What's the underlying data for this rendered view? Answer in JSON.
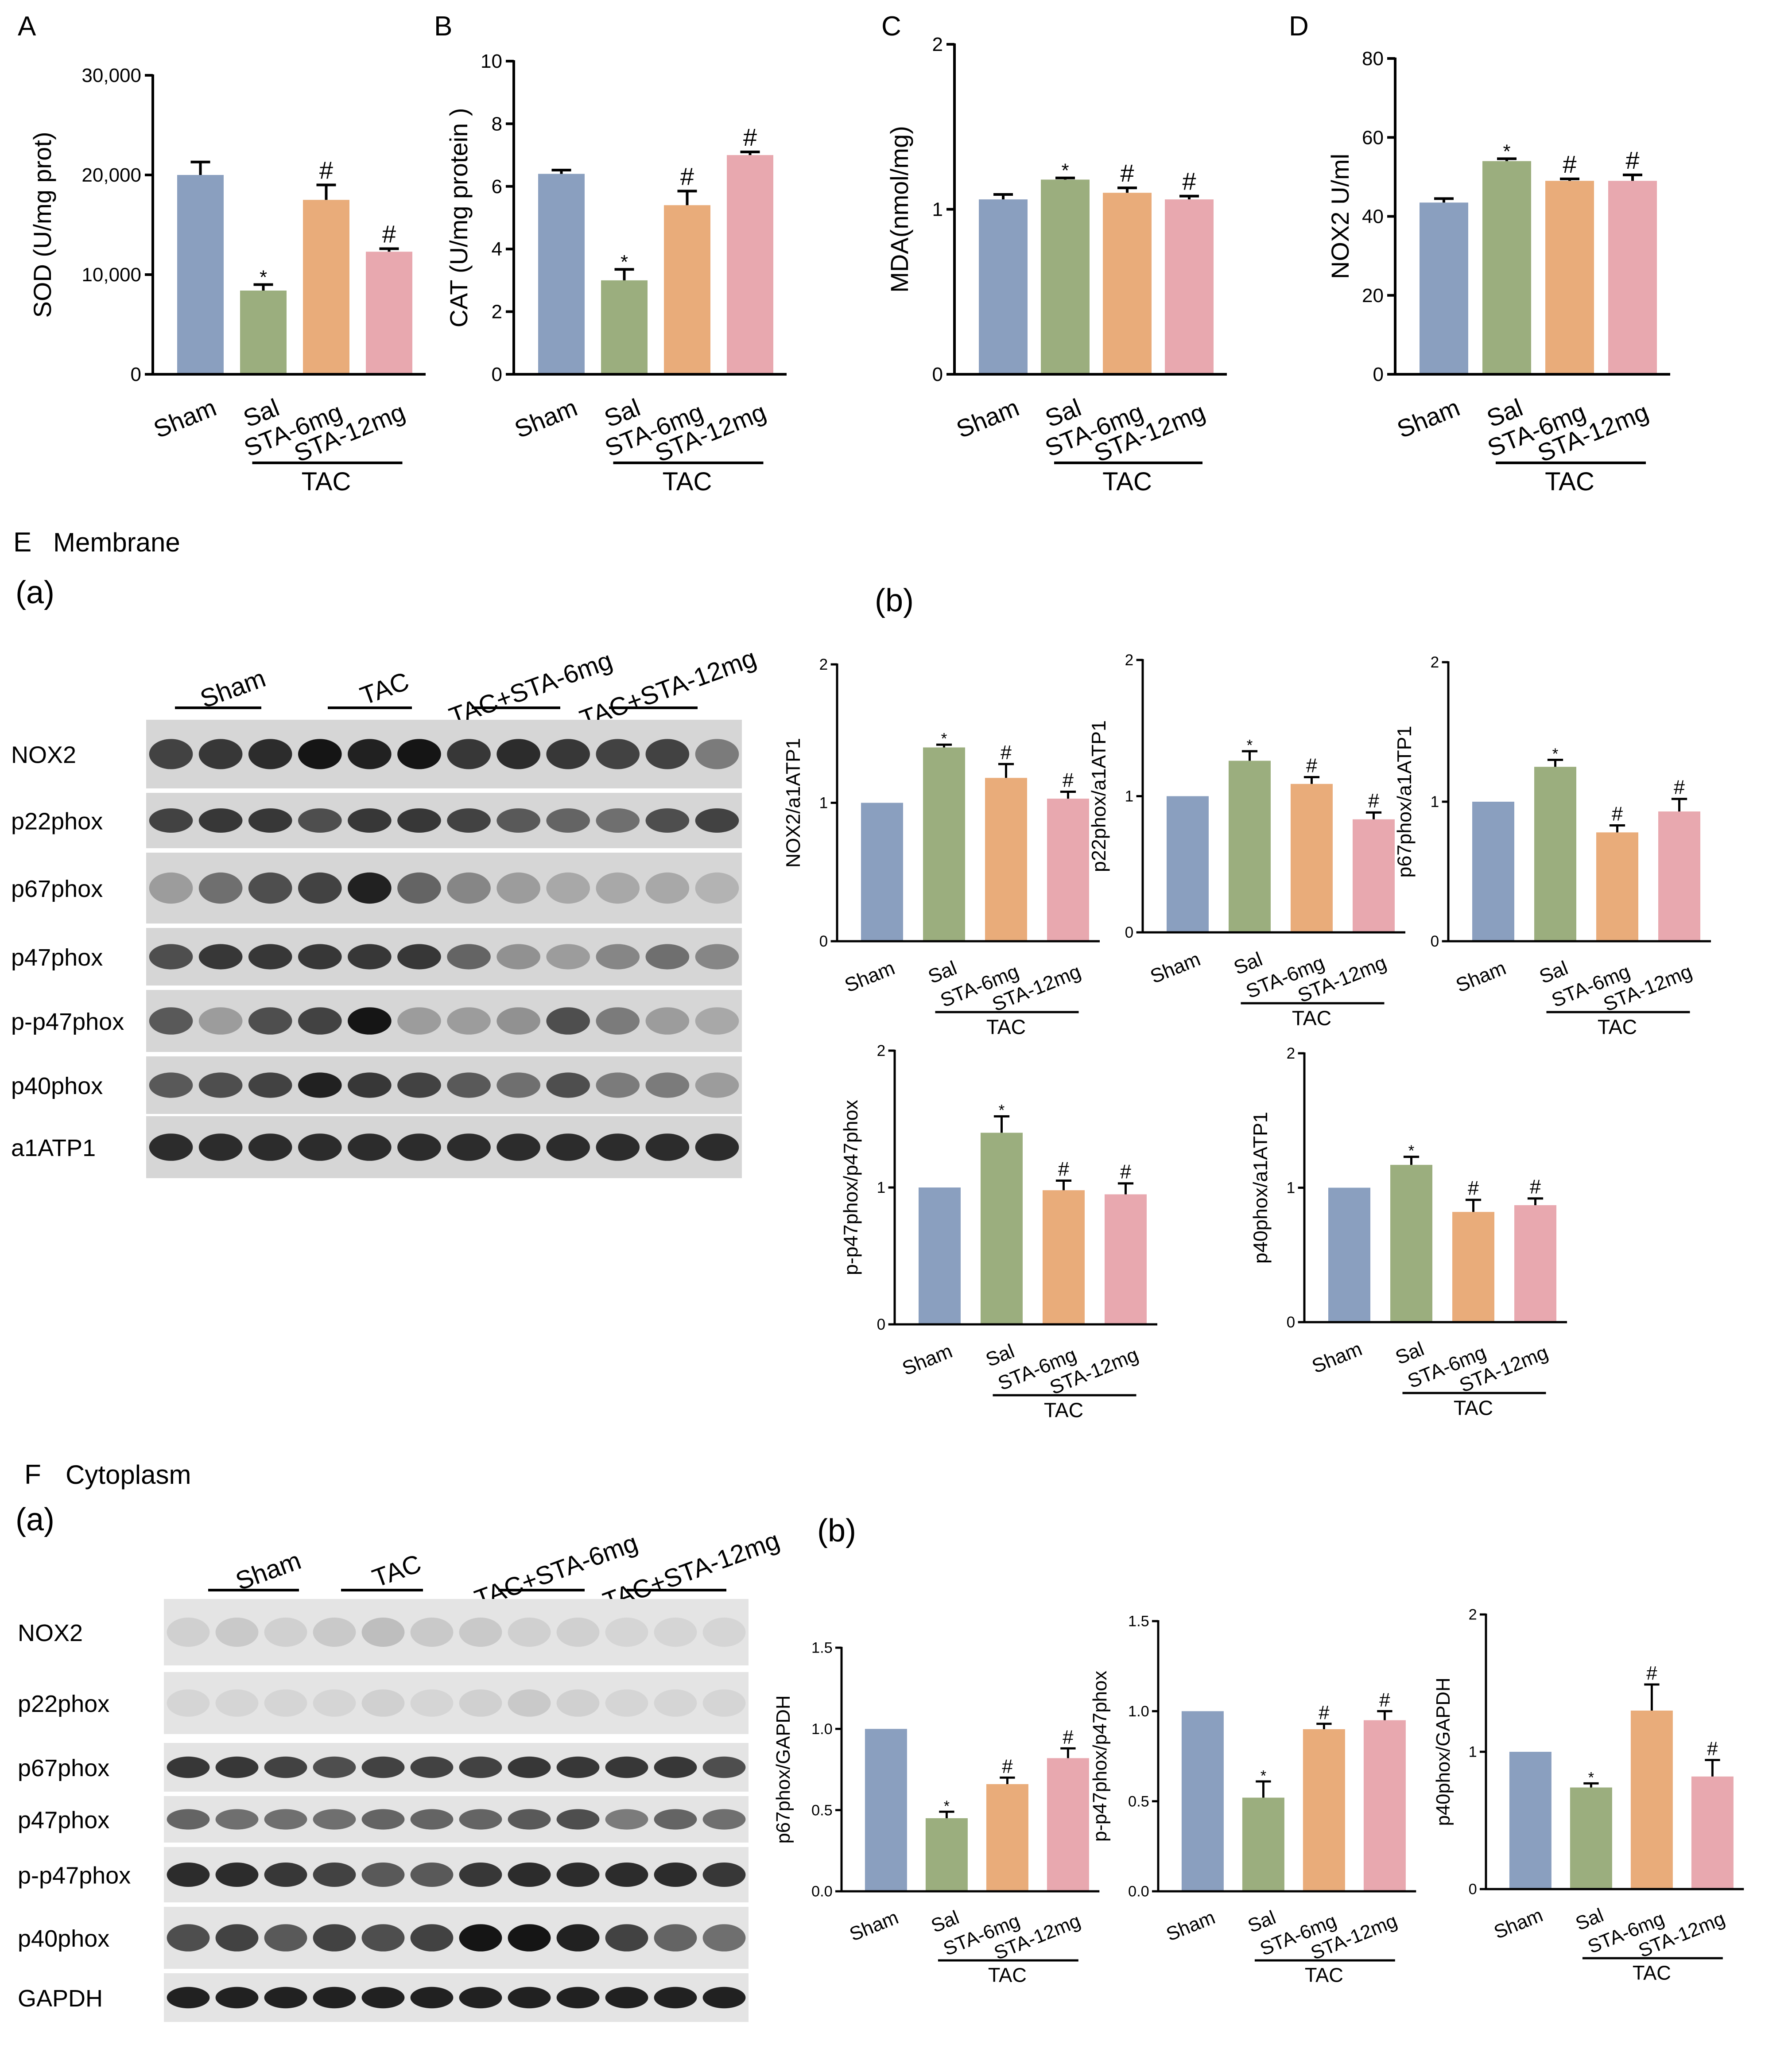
{
  "colors": {
    "sham": "#8A9FBF",
    "sal": "#9BAE7E",
    "sta6": "#E9AC7A",
    "sta12": "#E8A8AF",
    "axis": "#000000"
  },
  "group_labels": [
    "Sham",
    "Sal",
    "STA-6mg",
    "STA-12mg"
  ],
  "group_bracket": "TAC",
  "sections": {
    "E": {
      "letter": "E",
      "title": "Membrane",
      "sub_a": "(a)",
      "sub_b": "(b)"
    },
    "F": {
      "letter": "F",
      "title": "Cytoplasm",
      "sub_a": "(a)",
      "sub_b": "(b)"
    }
  },
  "blots": {
    "membrane": {
      "groups": [
        "Sham",
        "TAC",
        "TAC+STA-6mg",
        "TAC+STA-12mg"
      ],
      "rows": [
        {
          "label": "NOX2",
          "lanes": [
            0.75,
            0.8,
            0.85,
            0.95,
            0.9,
            0.95,
            0.8,
            0.85,
            0.8,
            0.75,
            0.75,
            0.5
          ]
        },
        {
          "label": "p22phox",
          "lanes": [
            0.75,
            0.8,
            0.8,
            0.7,
            0.8,
            0.8,
            0.75,
            0.65,
            0.6,
            0.55,
            0.7,
            0.75
          ]
        },
        {
          "label": "p67phox",
          "lanes": [
            0.35,
            0.55,
            0.7,
            0.75,
            0.9,
            0.6,
            0.45,
            0.35,
            0.3,
            0.3,
            0.3,
            0.25
          ]
        },
        {
          "label": "p47phox",
          "lanes": [
            0.7,
            0.8,
            0.8,
            0.8,
            0.8,
            0.8,
            0.6,
            0.4,
            0.35,
            0.45,
            0.55,
            0.45
          ]
        },
        {
          "label": "p-p47phox",
          "lanes": [
            0.65,
            0.35,
            0.7,
            0.75,
            0.95,
            0.35,
            0.35,
            0.4,
            0.7,
            0.5,
            0.35,
            0.3
          ]
        },
        {
          "label": "p40phox",
          "lanes": [
            0.65,
            0.7,
            0.75,
            0.9,
            0.8,
            0.75,
            0.65,
            0.55,
            0.7,
            0.5,
            0.5,
            0.35
          ]
        },
        {
          "label": "a1ATP1",
          "lanes": [
            0.85,
            0.85,
            0.85,
            0.85,
            0.85,
            0.85,
            0.85,
            0.85,
            0.85,
            0.85,
            0.85,
            0.85
          ]
        }
      ]
    },
    "cytoplasm": {
      "groups": [
        "Sham",
        "TAC",
        "TAC+STA-6mg",
        "TAC+STA-12mg"
      ],
      "rows": [
        {
          "label": "NOX2",
          "lanes": [
            0.12,
            0.15,
            0.12,
            0.15,
            0.2,
            0.15,
            0.15,
            0.12,
            0.12,
            0.1,
            0.1,
            0.1
          ]
        },
        {
          "label": "p22phox",
          "lanes": [
            0.1,
            0.1,
            0.1,
            0.1,
            0.12,
            0.1,
            0.12,
            0.15,
            0.12,
            0.1,
            0.1,
            0.1
          ]
        },
        {
          "label": "p67phox",
          "lanes": [
            0.8,
            0.8,
            0.75,
            0.7,
            0.75,
            0.75,
            0.75,
            0.8,
            0.8,
            0.8,
            0.8,
            0.7
          ]
        },
        {
          "label": "p47phox",
          "lanes": [
            0.6,
            0.55,
            0.55,
            0.55,
            0.6,
            0.6,
            0.6,
            0.65,
            0.7,
            0.5,
            0.6,
            0.55
          ]
        },
        {
          "label": "p-p47phox",
          "lanes": [
            0.85,
            0.85,
            0.8,
            0.75,
            0.65,
            0.65,
            0.8,
            0.85,
            0.85,
            0.85,
            0.85,
            0.8
          ]
        },
        {
          "label": "p40phox",
          "lanes": [
            0.7,
            0.75,
            0.65,
            0.75,
            0.7,
            0.75,
            0.95,
            0.95,
            0.9,
            0.75,
            0.6,
            0.55
          ]
        },
        {
          "label": "GAPDH",
          "lanes": [
            0.9,
            0.9,
            0.9,
            0.9,
            0.9,
            0.9,
            0.9,
            0.9,
            0.9,
            0.9,
            0.9,
            0.9
          ]
        }
      ]
    }
  },
  "chart_data": [
    {
      "id": "A",
      "panel_label": "A",
      "type": "bar",
      "ylabel": "SOD (U/mg prot)",
      "ylim": [
        0,
        30000
      ],
      "yticks": [
        "0",
        "10,000",
        "20,000",
        "30,000"
      ],
      "categories": [
        "Sham",
        "Sal",
        "STA-6mg",
        "STA-12mg"
      ],
      "values": [
        20000,
        8400,
        17500,
        12300
      ],
      "errors": [
        1300,
        600,
        1500,
        300
      ],
      "marks": [
        "",
        "*",
        "#",
        "#"
      ],
      "group_label": "TAC"
    },
    {
      "id": "B",
      "panel_label": "B",
      "type": "bar",
      "ylabel": "CAT (U/mg protein )",
      "ylim": [
        0,
        10
      ],
      "yticks": [
        "0",
        "2",
        "4",
        "6",
        "8",
        "10"
      ],
      "categories": [
        "Sham",
        "Sal",
        "STA-6mg",
        "STA-12mg"
      ],
      "values": [
        6.4,
        3.0,
        5.4,
        7.0
      ],
      "errors": [
        0.12,
        0.35,
        0.45,
        0.1
      ],
      "marks": [
        "",
        "*",
        "#",
        "#"
      ],
      "group_label": "TAC"
    },
    {
      "id": "C",
      "panel_label": "C",
      "type": "bar",
      "ylabel": "MDA(nmol/mg)",
      "ylim": [
        0,
        2
      ],
      "yticks": [
        "0",
        "1",
        "2"
      ],
      "categories": [
        "Sham",
        "Sal",
        "STA-6mg",
        "STA-12mg"
      ],
      "values": [
        1.06,
        1.18,
        1.1,
        1.06
      ],
      "errors": [
        0.03,
        0.01,
        0.03,
        0.02
      ],
      "marks": [
        "",
        "*",
        "#",
        "#"
      ],
      "group_label": "TAC"
    },
    {
      "id": "D",
      "panel_label": "D",
      "type": "bar",
      "ylabel": "NOX2 U/ml",
      "ylim": [
        0,
        80
      ],
      "yticks": [
        "0",
        "20",
        "40",
        "60",
        "80"
      ],
      "categories": [
        "Sham",
        "Sal",
        "STA-6mg",
        "STA-12mg"
      ],
      "values": [
        43.5,
        54,
        49,
        49
      ],
      "errors": [
        1.0,
        0.6,
        0.5,
        1.5
      ],
      "marks": [
        "",
        "*",
        "#",
        "#"
      ],
      "group_label": "TAC"
    },
    {
      "id": "E1",
      "type": "bar",
      "ylabel": "NOX2/a1ATP1",
      "ylim": [
        0,
        2
      ],
      "yticks": [
        "0",
        "1",
        "2"
      ],
      "categories": [
        "Sham",
        "Sal",
        "STA-6mg",
        "STA-12mg"
      ],
      "values": [
        1.0,
        1.4,
        1.18,
        1.03
      ],
      "errors": [
        0,
        0.02,
        0.1,
        0.05
      ],
      "marks": [
        "",
        "*",
        "#",
        "#"
      ],
      "group_label": "TAC"
    },
    {
      "id": "E2",
      "type": "bar",
      "ylabel": "p22phox/a1ATP1",
      "ylim": [
        0,
        2
      ],
      "yticks": [
        "0",
        "1",
        "2"
      ],
      "categories": [
        "Sham",
        "Sal",
        "STA-6mg",
        "STA-12mg"
      ],
      "values": [
        1.0,
        1.26,
        1.09,
        0.83
      ],
      "errors": [
        0,
        0.07,
        0.05,
        0.05
      ],
      "marks": [
        "",
        "*",
        "#",
        "#"
      ],
      "group_label": "TAC"
    },
    {
      "id": "E3",
      "type": "bar",
      "ylabel": "p67phox/a1ATP1",
      "ylim": [
        0,
        2
      ],
      "yticks": [
        "0",
        "1",
        "2"
      ],
      "categories": [
        "Sham",
        "Sal",
        "STA-6mg",
        "STA-12mg"
      ],
      "values": [
        1.0,
        1.25,
        0.78,
        0.93
      ],
      "errors": [
        0,
        0.05,
        0.05,
        0.09
      ],
      "marks": [
        "",
        "*",
        "#",
        "#"
      ],
      "group_label": "TAC"
    },
    {
      "id": "E4",
      "type": "bar",
      "ylabel": "p-p47phox/p47phox",
      "ylim": [
        0,
        2
      ],
      "yticks": [
        "0",
        "1",
        "2"
      ],
      "categories": [
        "Sham",
        "Sal",
        "STA-6mg",
        "STA-12mg"
      ],
      "values": [
        1.0,
        1.4,
        0.98,
        0.95
      ],
      "errors": [
        0,
        0.12,
        0.07,
        0.08
      ],
      "marks": [
        "",
        "*",
        "#",
        "#"
      ],
      "group_label": "TAC"
    },
    {
      "id": "E5",
      "type": "bar",
      "ylabel": "p40phox/a1ATP1",
      "ylim": [
        0,
        2
      ],
      "yticks": [
        "0",
        "1",
        "2"
      ],
      "categories": [
        "Sham",
        "Sal",
        "STA-6mg",
        "STA-12mg"
      ],
      "values": [
        1.0,
        1.17,
        0.82,
        0.87
      ],
      "errors": [
        0,
        0.06,
        0.09,
        0.05
      ],
      "marks": [
        "",
        "*",
        "#",
        "#"
      ],
      "group_label": "TAC"
    },
    {
      "id": "F1",
      "type": "bar",
      "ylabel": "p67phox/GAPDH",
      "ylim": [
        0,
        1.5
      ],
      "yticks": [
        "0.0",
        "0.5",
        "1.0",
        "1.5"
      ],
      "categories": [
        "Sham",
        "Sal",
        "STA-6mg",
        "STA-12mg"
      ],
      "values": [
        1.0,
        0.45,
        0.66,
        0.82
      ],
      "errors": [
        0,
        0.04,
        0.04,
        0.06
      ],
      "marks": [
        "",
        "*",
        "#",
        "#"
      ],
      "group_label": "TAC"
    },
    {
      "id": "F2",
      "type": "bar",
      "ylabel": "p-p47phox/p47phox",
      "ylim": [
        0,
        1.5
      ],
      "yticks": [
        "0.0",
        "0.5",
        "1.0",
        "1.5"
      ],
      "categories": [
        "Sham",
        "Sal",
        "STA-6mg",
        "STA-12mg"
      ],
      "values": [
        1.0,
        0.52,
        0.9,
        0.95
      ],
      "errors": [
        0,
        0.09,
        0.03,
        0.05
      ],
      "marks": [
        "",
        "*",
        "#",
        "#"
      ],
      "group_label": "TAC"
    },
    {
      "id": "F3",
      "type": "bar",
      "ylabel": "p40phox/GAPDH",
      "ylim": [
        0,
        2
      ],
      "yticks": [
        "0",
        "1",
        "2"
      ],
      "categories": [
        "Sham",
        "Sal",
        "STA-6mg",
        "STA-12mg"
      ],
      "values": [
        1.0,
        0.74,
        1.3,
        0.82
      ],
      "errors": [
        0,
        0.03,
        0.19,
        0.12
      ],
      "marks": [
        "",
        "*",
        "#",
        "#"
      ],
      "group_label": "TAC"
    }
  ]
}
